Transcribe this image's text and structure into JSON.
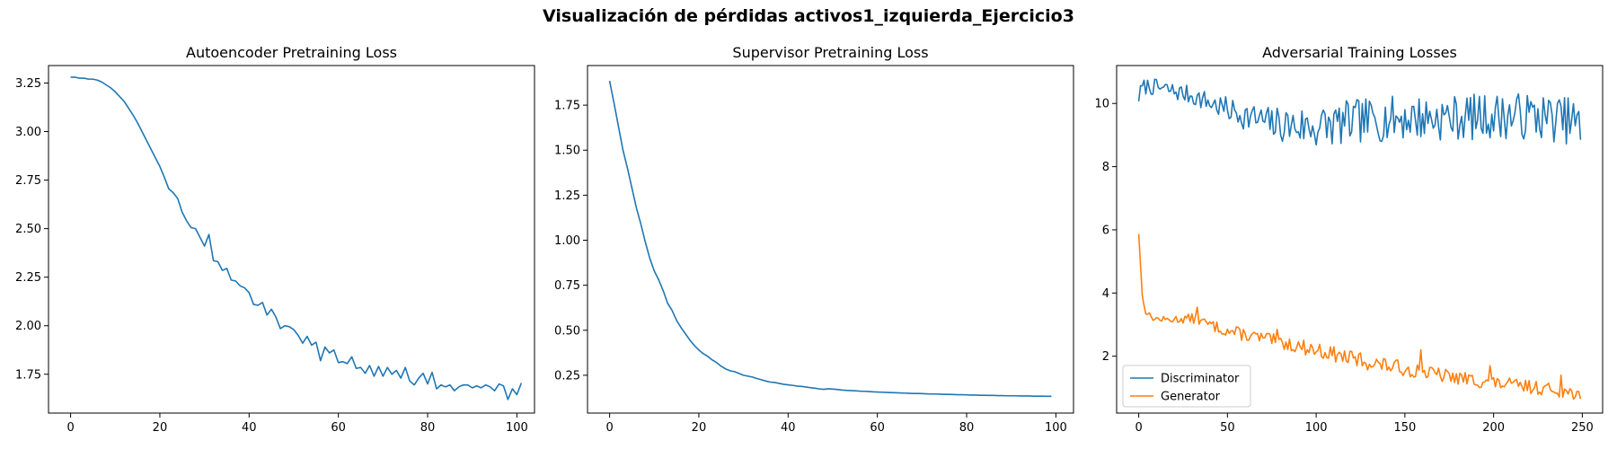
{
  "figure": {
    "title": "Visualización de pérdidas activos1_izquierda_Ejercicio3"
  },
  "chart_data": [
    {
      "type": "line",
      "title": "Autoencoder Pretraining Loss",
      "xlabel": "",
      "ylabel": "",
      "xlim": [
        -4.95,
        103.95
      ],
      "ylim": [
        1.55,
        3.34
      ],
      "xticks": [
        0,
        20,
        40,
        60,
        80,
        100
      ],
      "yticks": [
        1.75,
        2.0,
        2.25,
        2.5,
        2.75,
        3.0,
        3.25
      ],
      "ytick_labels": [
        "1.75",
        "2.00",
        "2.25",
        "2.50",
        "2.75",
        "3.00",
        "3.25"
      ],
      "grid": false,
      "series": [
        {
          "color": "#1f77b4",
          "x_start": 0,
          "values": [
            3.28,
            3.28,
            3.275,
            3.275,
            3.27,
            3.27,
            3.265,
            3.255,
            3.24,
            3.225,
            3.205,
            3.18,
            3.155,
            3.12,
            3.085,
            3.045,
            3.0,
            2.955,
            2.91,
            2.865,
            2.82,
            2.765,
            2.705,
            2.685,
            2.655,
            2.585,
            2.54,
            2.505,
            2.5,
            2.455,
            2.41,
            2.47,
            2.335,
            2.33,
            2.285,
            2.295,
            2.235,
            2.23,
            2.205,
            2.195,
            2.17,
            2.11,
            2.105,
            2.12,
            2.055,
            2.085,
            2.045,
            1.985,
            2.0,
            1.995,
            1.98,
            1.95,
            1.91,
            1.945,
            1.9,
            1.915,
            1.82,
            1.89,
            1.86,
            1.875,
            1.81,
            1.815,
            1.805,
            1.84,
            1.78,
            1.785,
            1.755,
            1.795,
            1.74,
            1.79,
            1.74,
            1.785,
            1.75,
            1.77,
            1.73,
            1.785,
            1.715,
            1.695,
            1.73,
            1.755,
            1.7,
            1.76,
            1.675,
            1.695,
            1.685,
            1.695,
            1.665,
            1.685,
            1.695,
            1.695,
            1.68,
            1.69,
            1.68,
            1.695,
            1.685,
            1.665,
            1.7,
            1.69,
            1.62,
            1.675,
            1.645,
            1.705
          ]
        }
      ]
    },
    {
      "type": "line",
      "title": "Supervisor Pretraining Loss",
      "xlabel": "",
      "ylabel": "",
      "xlim": [
        -4.95,
        103.95
      ],
      "ylim": [
        0.04,
        1.97
      ],
      "xticks": [
        0,
        20,
        40,
        60,
        80,
        100
      ],
      "yticks": [
        0.25,
        0.5,
        0.75,
        1.0,
        1.25,
        1.5,
        1.75
      ],
      "ytick_labels": [
        "0.25",
        "0.50",
        "0.75",
        "1.00",
        "1.25",
        "1.50",
        "1.75"
      ],
      "grid": false,
      "series": [
        {
          "color": "#1f77b4",
          "x_start": 0,
          "values": [
            1.885,
            1.76,
            1.63,
            1.5,
            1.4,
            1.29,
            1.18,
            1.09,
            0.99,
            0.9,
            0.83,
            0.78,
            0.72,
            0.65,
            0.61,
            0.555,
            0.515,
            0.48,
            0.445,
            0.415,
            0.39,
            0.37,
            0.355,
            0.335,
            0.32,
            0.3,
            0.285,
            0.275,
            0.27,
            0.26,
            0.25,
            0.245,
            0.24,
            0.232,
            0.225,
            0.218,
            0.212,
            0.21,
            0.205,
            0.2,
            0.197,
            0.194,
            0.19,
            0.188,
            0.185,
            0.181,
            0.178,
            0.174,
            0.172,
            0.175,
            0.173,
            0.171,
            0.168,
            0.166,
            0.165,
            0.164,
            0.162,
            0.161,
            0.16,
            0.158,
            0.157,
            0.156,
            0.155,
            0.154,
            0.153,
            0.152,
            0.151,
            0.15,
            0.149,
            0.149,
            0.148,
            0.147,
            0.146,
            0.146,
            0.145,
            0.144,
            0.144,
            0.143,
            0.142,
            0.142,
            0.141,
            0.14,
            0.14,
            0.139,
            0.139,
            0.138,
            0.138,
            0.137,
            0.137,
            0.136,
            0.136,
            0.136,
            0.135,
            0.135,
            0.135,
            0.134,
            0.134,
            0.134,
            0.133,
            0.133
          ]
        }
      ]
    },
    {
      "type": "line",
      "title": "Adversarial Training Losses",
      "xlabel": "",
      "ylabel": "",
      "xlim": [
        -12.45,
        261.45
      ],
      "ylim": [
        0.2,
        11.2
      ],
      "xticks": [
        0,
        50,
        100,
        150,
        200,
        250
      ],
      "yticks": [
        2,
        4,
        6,
        8,
        10
      ],
      "ytick_labels": [
        "2",
        "4",
        "6",
        "8",
        "10"
      ],
      "grid": false,
      "legend": {
        "position": "lower-left",
        "entries": [
          "Discriminator",
          "Generator"
        ]
      },
      "series": [
        {
          "name": "Discriminator",
          "color": "#1f77b4",
          "x_start": 0,
          "anchors": [
            [
              0,
              10.2
            ],
            [
              2,
              10.5
            ],
            [
              5,
              10.55
            ],
            [
              15,
              10.45
            ],
            [
              30,
              10.25
            ],
            [
              50,
              9.8
            ],
            [
              75,
              9.35
            ],
            [
              100,
              9.25
            ],
            [
              125,
              9.45
            ],
            [
              150,
              9.55
            ],
            [
              175,
              9.55
            ],
            [
              200,
              9.6
            ],
            [
              225,
              9.6
            ],
            [
              249,
              9.4
            ]
          ],
          "noise_amp": [
            [
              0,
              0.25
            ],
            [
              30,
              0.3
            ],
            [
              60,
              0.45
            ],
            [
              100,
              0.7
            ],
            [
              249,
              0.75
            ]
          ],
          "final_value": 8.85,
          "seed": 7,
          "count": 250
        },
        {
          "name": "Generator",
          "color": "#ff7f0e",
          "x_start": 0,
          "anchors": [
            [
              0,
              5.9
            ],
            [
              1,
              4.9
            ],
            [
              2,
              3.9
            ],
            [
              4,
              3.4
            ],
            [
              8,
              3.2
            ],
            [
              15,
              3.15
            ],
            [
              30,
              3.2
            ],
            [
              50,
              2.8
            ],
            [
              75,
              2.5
            ],
            [
              100,
              2.2
            ],
            [
              125,
              1.85
            ],
            [
              150,
              1.6
            ],
            [
              175,
              1.35
            ],
            [
              200,
              1.15
            ],
            [
              225,
              1.0
            ],
            [
              249,
              0.8
            ]
          ],
          "noise_amp": [
            [
              0,
              0.06
            ],
            [
              20,
              0.12
            ],
            [
              50,
              0.2
            ],
            [
              120,
              0.25
            ],
            [
              249,
              0.2
            ]
          ],
          "spikes": [
            [
              33,
              3.55
            ],
            [
              78,
              2.85
            ],
            [
              125,
              2.1
            ],
            [
              159,
              2.2
            ],
            [
              198,
              1.7
            ],
            [
              238,
              1.4
            ]
          ],
          "final_value": 0.65,
          "seed": 13,
          "count": 250
        }
      ]
    }
  ]
}
